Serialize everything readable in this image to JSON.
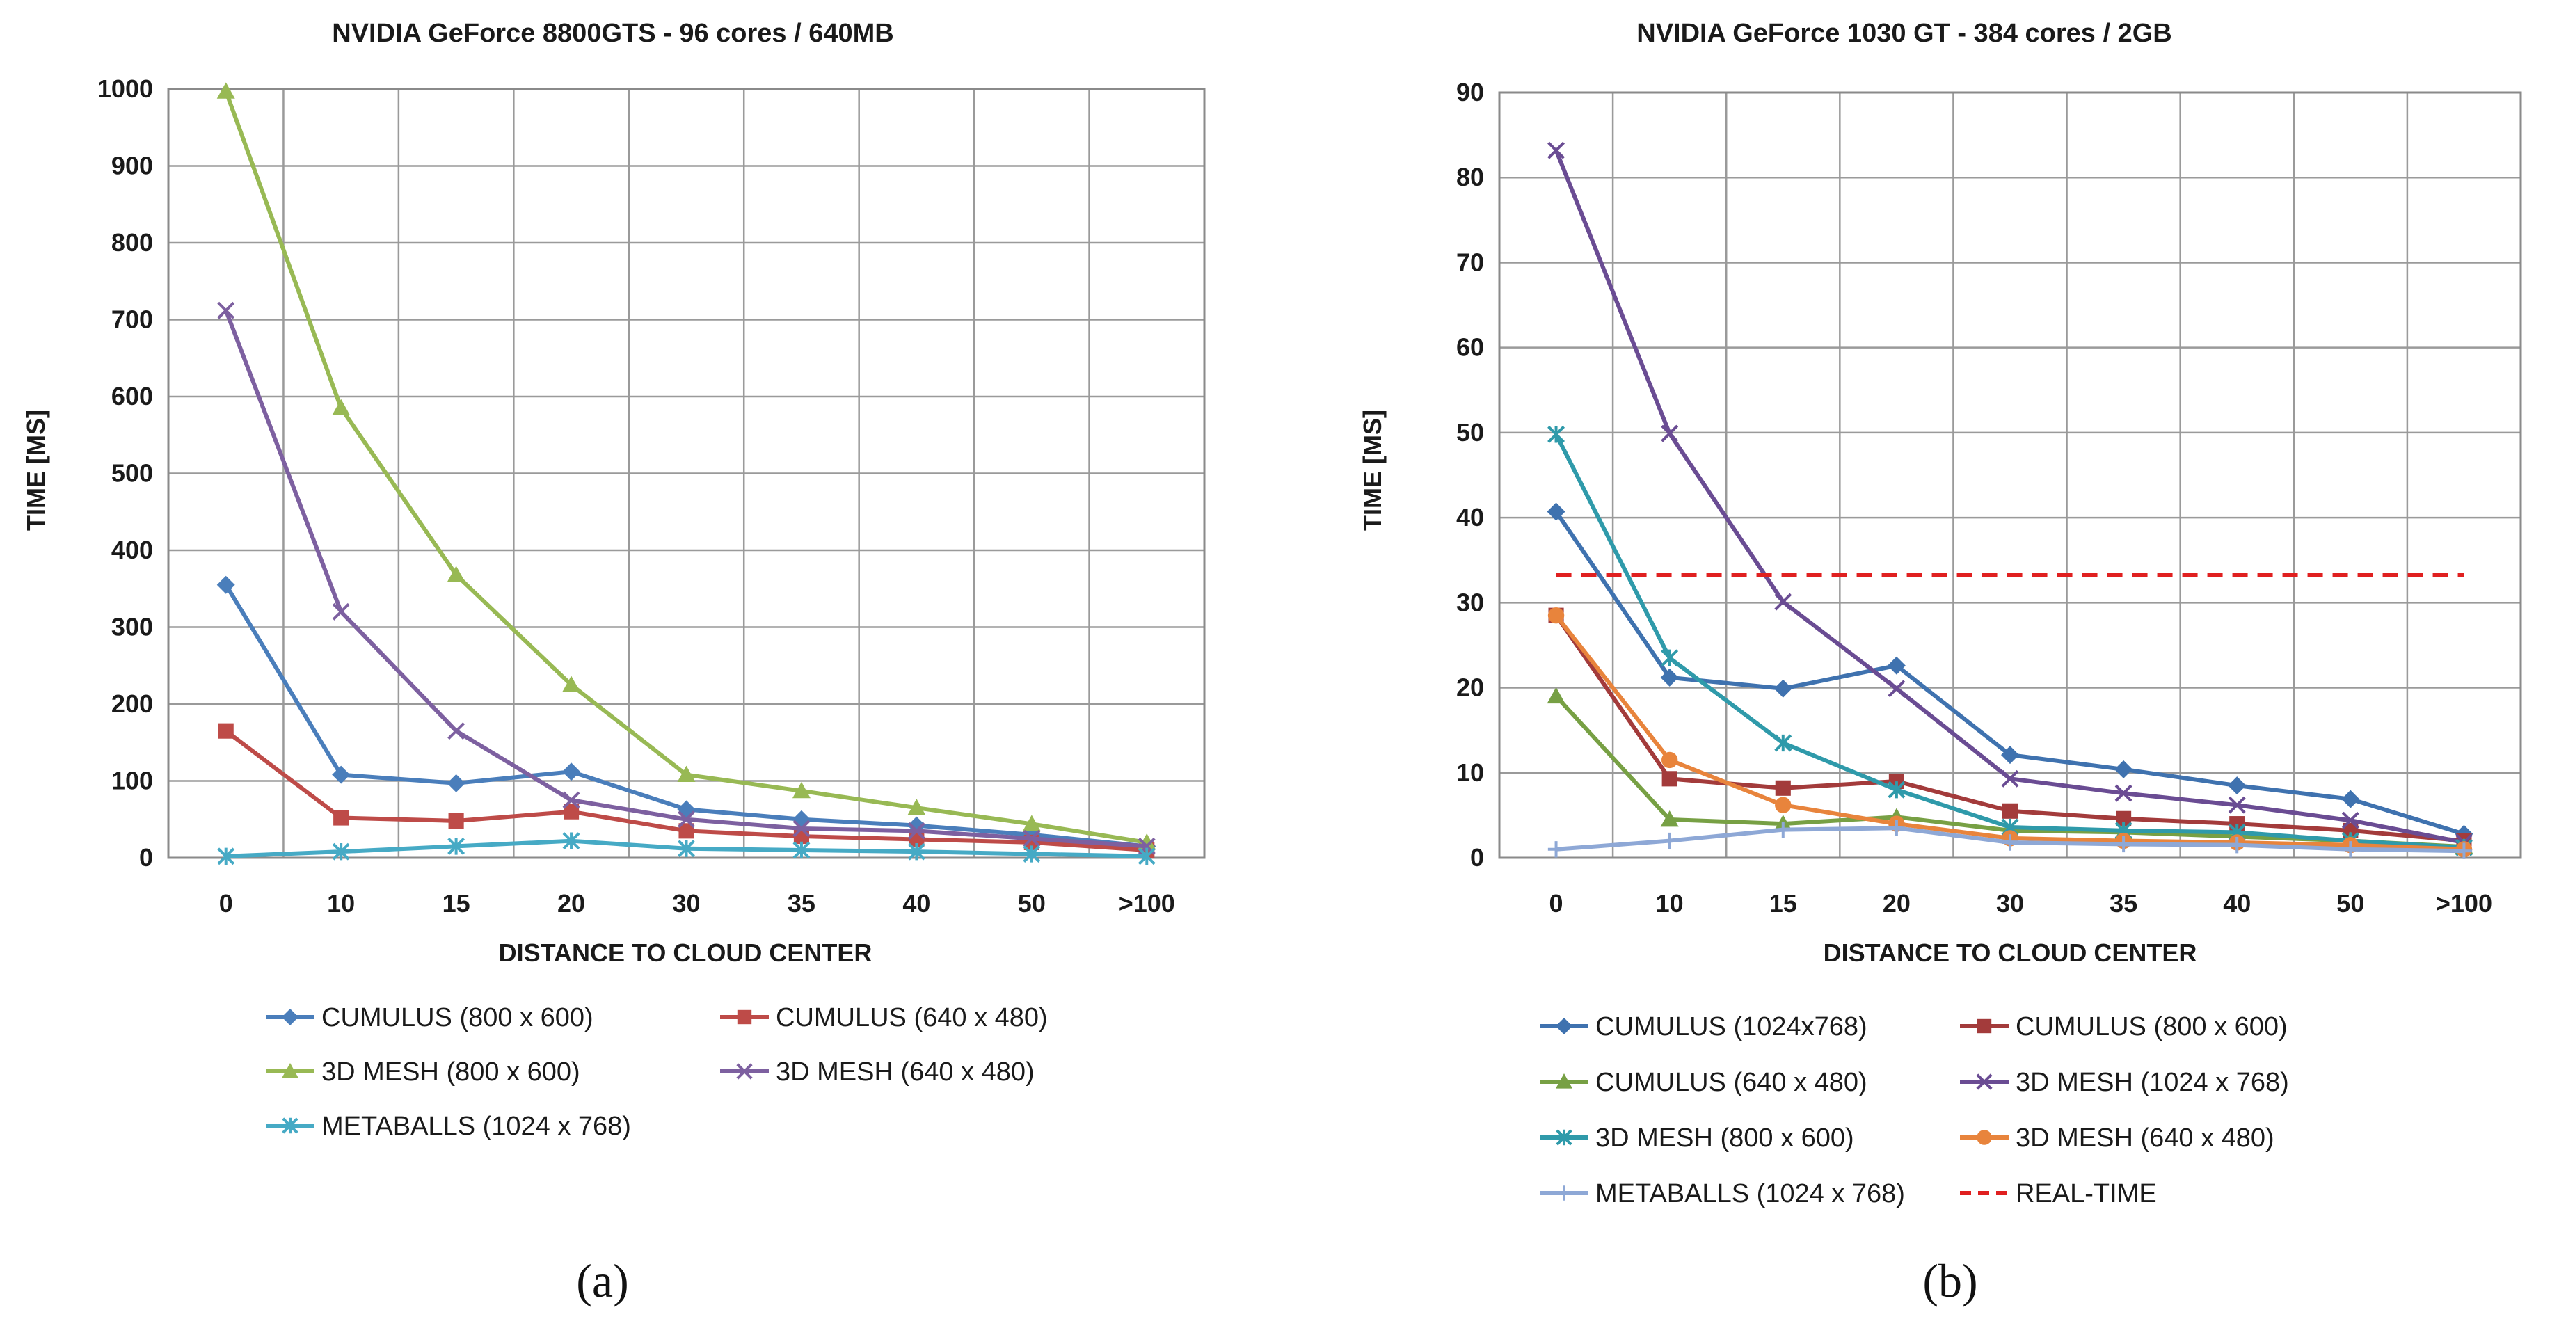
{
  "chart_data": [
    {
      "type": "line",
      "title": "NVIDIA GeForce 8800GTS - 96 cores / 640MB",
      "xlabel": "DISTANCE TO  CLOUD CENTER",
      "ylabel": "TIME [MS]",
      "categories": [
        "0",
        "10",
        "15",
        "20",
        "30",
        "35",
        "40",
        "50",
        ">100"
      ],
      "ylim": [
        0,
        1000
      ],
      "yticks": [
        0,
        100,
        200,
        300,
        400,
        500,
        600,
        700,
        800,
        900,
        1000
      ],
      "grid": true,
      "legend_position": "bottom",
      "caption": "(a)",
      "series": [
        {
          "name": "CUMULUS (800 x 600)",
          "color": "#4A7EBB",
          "marker": "diamond",
          "values": [
            355,
            108,
            97,
            112,
            63,
            50,
            42,
            30,
            15
          ]
        },
        {
          "name": "CUMULUS  (640 x 480)",
          "color": "#BE4B48",
          "marker": "square",
          "values": [
            165,
            52,
            48,
            60,
            35,
            28,
            24,
            20,
            10
          ]
        },
        {
          "name": "3D MESH (800 x 600)",
          "color": "#98B954",
          "marker": "triangle",
          "values": [
            997,
            585,
            368,
            225,
            108,
            87,
            65,
            44,
            20
          ]
        },
        {
          "name": "3D MESH (640 x 480)",
          "color": "#7D60A0",
          "marker": "x",
          "values": [
            712,
            320,
            165,
            75,
            50,
            38,
            35,
            25,
            15
          ]
        },
        {
          "name": "METABALLS (1024 x 768)",
          "color": "#46AAC5",
          "marker": "star",
          "values": [
            2,
            8,
            15,
            22,
            12,
            10,
            8,
            5,
            2
          ]
        }
      ]
    },
    {
      "type": "line",
      "title": "NVIDIA GeForce 1030 GT - 384 cores / 2GB",
      "xlabel": "DISTANCE TO  CLOUD CENTER",
      "ylabel": "TIME [MS]",
      "categories": [
        "0",
        "10",
        "15",
        "20",
        "30",
        "35",
        "40",
        "50",
        ">100"
      ],
      "ylim": [
        0,
        90
      ],
      "yticks": [
        0,
        10,
        20,
        30,
        40,
        50,
        60,
        70,
        80,
        90
      ],
      "grid": true,
      "legend_position": "bottom",
      "caption": "(b)",
      "series": [
        {
          "name": "CUMULUS (1024x768)",
          "color": "#3F72AF",
          "marker": "diamond",
          "values": [
            40.7,
            21.2,
            19.9,
            22.6,
            12.1,
            10.4,
            8.5,
            6.9,
            2.8
          ]
        },
        {
          "name": "CUMULUS (800 x 600)",
          "color": "#A33B3B",
          "marker": "square",
          "values": [
            28.5,
            9.3,
            8.2,
            9.0,
            5.5,
            4.6,
            4.0,
            3.2,
            2.0
          ]
        },
        {
          "name": "CUMULUS (640 x 480)",
          "color": "#77A044",
          "marker": "triangle",
          "values": [
            19.0,
            4.5,
            4.0,
            4.8,
            3.2,
            3.0,
            2.5,
            2.0,
            1.3
          ]
        },
        {
          "name": "3D MESH  (1024  x 768)",
          "color": "#6A4C93",
          "marker": "x",
          "values": [
            83.2,
            49.9,
            30.1,
            19.9,
            9.3,
            7.6,
            6.2,
            4.4,
            1.8
          ]
        },
        {
          "name": "3D MESH (800 x 600)",
          "color": "#2F9AAA",
          "marker": "star",
          "values": [
            49.8,
            23.5,
            13.5,
            8.0,
            3.6,
            3.2,
            3.0,
            2.0,
            1.2
          ]
        },
        {
          "name": "3D MESH (640 x 480)",
          "color": "#E8843C",
          "marker": "circle",
          "values": [
            28.5,
            11.5,
            6.2,
            4.0,
            2.3,
            2.0,
            1.8,
            1.5,
            1.0
          ]
        },
        {
          "name": "METABALLS (1024 x 768)",
          "color": "#8EA8D6",
          "marker": "plus",
          "values": [
            1.0,
            2.0,
            3.3,
            3.5,
            1.8,
            1.6,
            1.5,
            1.0,
            0.8
          ]
        },
        {
          "name": "REAL-TIME",
          "color": "#E02020",
          "marker": "none",
          "dashed": true,
          "values": [
            33.3,
            33.3,
            33.3,
            33.3,
            33.3,
            33.3,
            33.3,
            33.3,
            33.3
          ]
        }
      ]
    }
  ]
}
